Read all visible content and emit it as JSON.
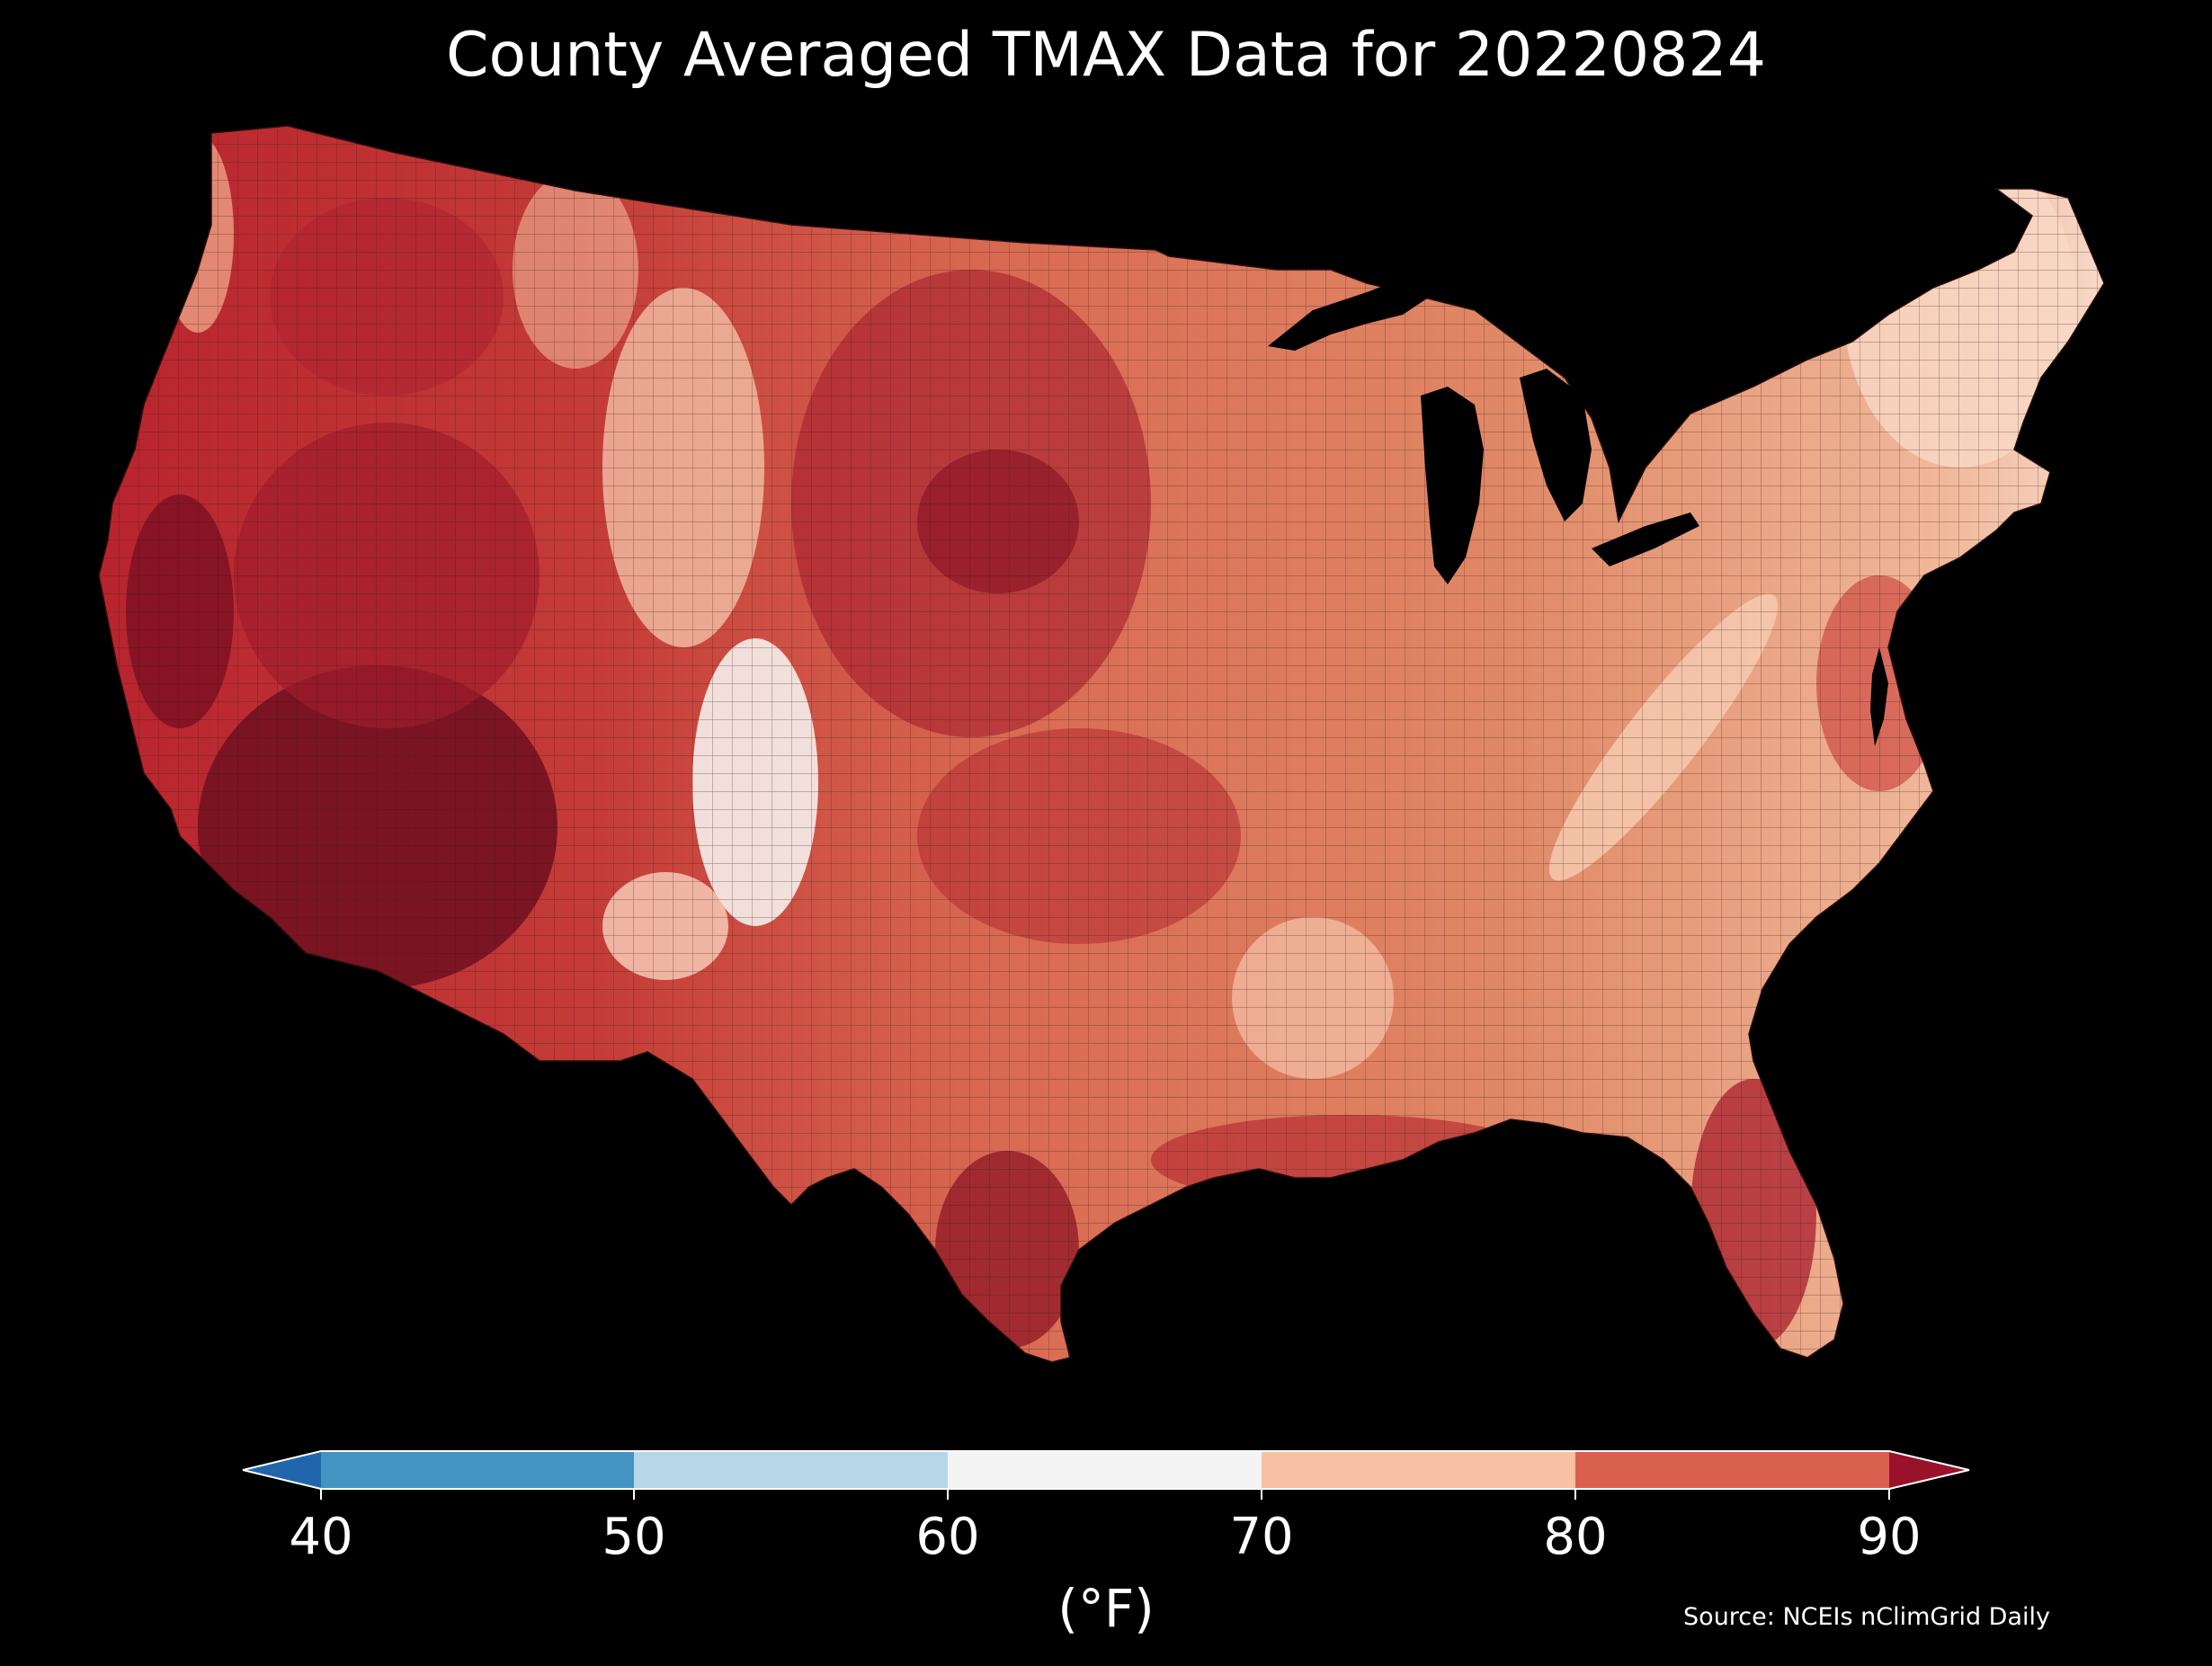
{
  "title": "County Averaged TMAX Data for 20220824",
  "colorbar": {
    "unit_label": "(°F)",
    "ticks": [
      "40",
      "50",
      "60",
      "70",
      "80",
      "90"
    ],
    "bins": [
      {
        "range": [
          40,
          50
        ],
        "color": "#4393c3"
      },
      {
        "range": [
          50,
          60
        ],
        "color": "#b6d7e8"
      },
      {
        "range": [
          60,
          70
        ],
        "color": "#f4f4f4"
      },
      {
        "range": [
          70,
          80
        ],
        "color": "#f8c0a4"
      },
      {
        "range": [
          80,
          90
        ],
        "color": "#d9604f"
      }
    ],
    "under_color": "#2166ac",
    "over_color": "#99122a",
    "extend": "both"
  },
  "source": "Source: NCEIs nClimGrid Daily",
  "map": {
    "region": "Contiguous United States",
    "variable": "TMAX",
    "date": "20220824",
    "background": "#000000",
    "county_border_color": "#3a1a14"
  }
}
